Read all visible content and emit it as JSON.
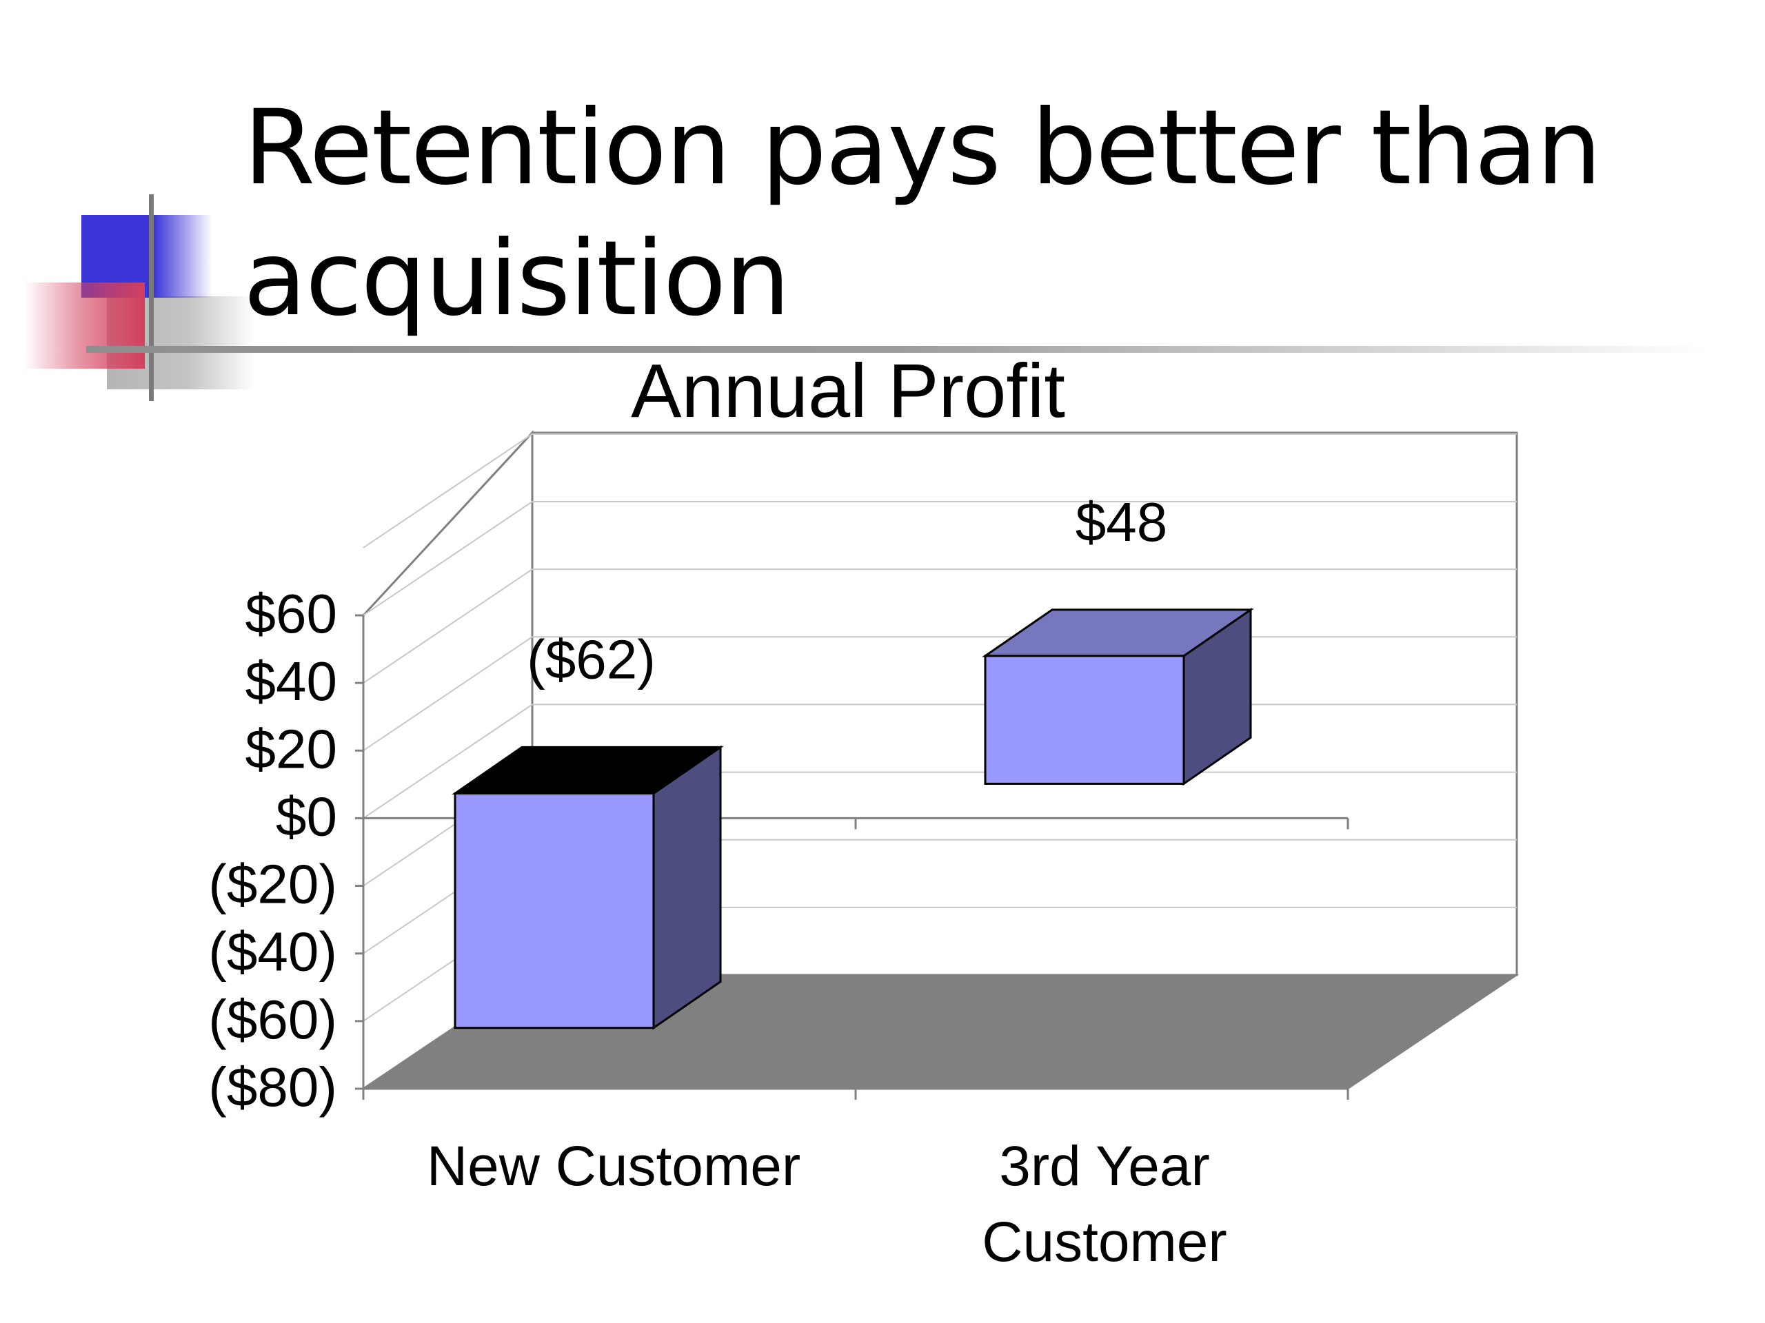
{
  "slide": {
    "title": "Retention pays better than acquisition",
    "title_line1": "Retention pays better than",
    "title_line2": "acquisition"
  },
  "chart_data": {
    "type": "bar",
    "title": "Annual Profit",
    "categories": [
      "New Customer",
      "3rd Year Customer"
    ],
    "category_labels": [
      [
        "New Customer"
      ],
      [
        "3rd Year",
        "Customer"
      ]
    ],
    "values": [
      -62,
      48
    ],
    "data_labels": [
      "($62)",
      "$48"
    ],
    "ylim": [
      -80,
      60
    ],
    "yticks": [
      60,
      40,
      20,
      0,
      -20,
      -40,
      -60,
      -80
    ],
    "ytick_labels": [
      "$60",
      "$40",
      "$20",
      "$0",
      "($20)",
      "($40)",
      "($60)",
      "($80)"
    ],
    "grid": true,
    "three_d": true,
    "colors": {
      "bar_front": "#9999ff",
      "bar_side": "#4d4d80",
      "bar_top": "#7777c0",
      "bar_top_negative": "#000000",
      "floor": "#808080",
      "grid": "#c8c8c8",
      "axis": "#808080"
    }
  }
}
